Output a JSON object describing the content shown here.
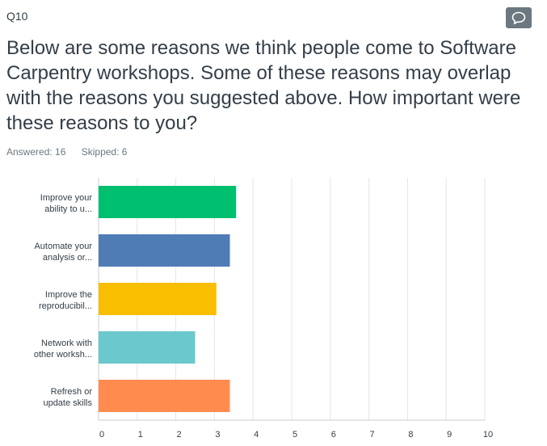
{
  "question": {
    "number": "Q10",
    "title": "Below are some reasons we think people come to Software Carpentry workshops. Some of these reasons may overlap with the reasons you suggested above. How important were these reasons to you?",
    "answered": "Answered: 16",
    "skipped": "Skipped: 6"
  },
  "icons": {
    "comment": "comment-icon"
  },
  "colors": {
    "comment_button": "#6b787f"
  },
  "chart_data": {
    "type": "bar",
    "orientation": "horizontal",
    "categories": [
      [
        "Improve your",
        "ability to u..."
      ],
      [
        "Automate your",
        "analysis or..."
      ],
      [
        "Improve the",
        "reproducibil..."
      ],
      [
        "Network with",
        "other worksh..."
      ],
      [
        "Refresh or",
        "update skills"
      ]
    ],
    "values": [
      3.56,
      3.4,
      3.05,
      2.5,
      3.4
    ],
    "colors": [
      "#00bf6f",
      "#507cb6",
      "#f9be00",
      "#6bc8cd",
      "#ff8b4f"
    ],
    "xlim": [
      0,
      10
    ],
    "ticks": [
      "0",
      "1",
      "2",
      "3",
      "4",
      "5",
      "6",
      "7",
      "8",
      "9",
      "10"
    ],
    "grid": true,
    "title": "",
    "xlabel": "",
    "ylabel": ""
  }
}
